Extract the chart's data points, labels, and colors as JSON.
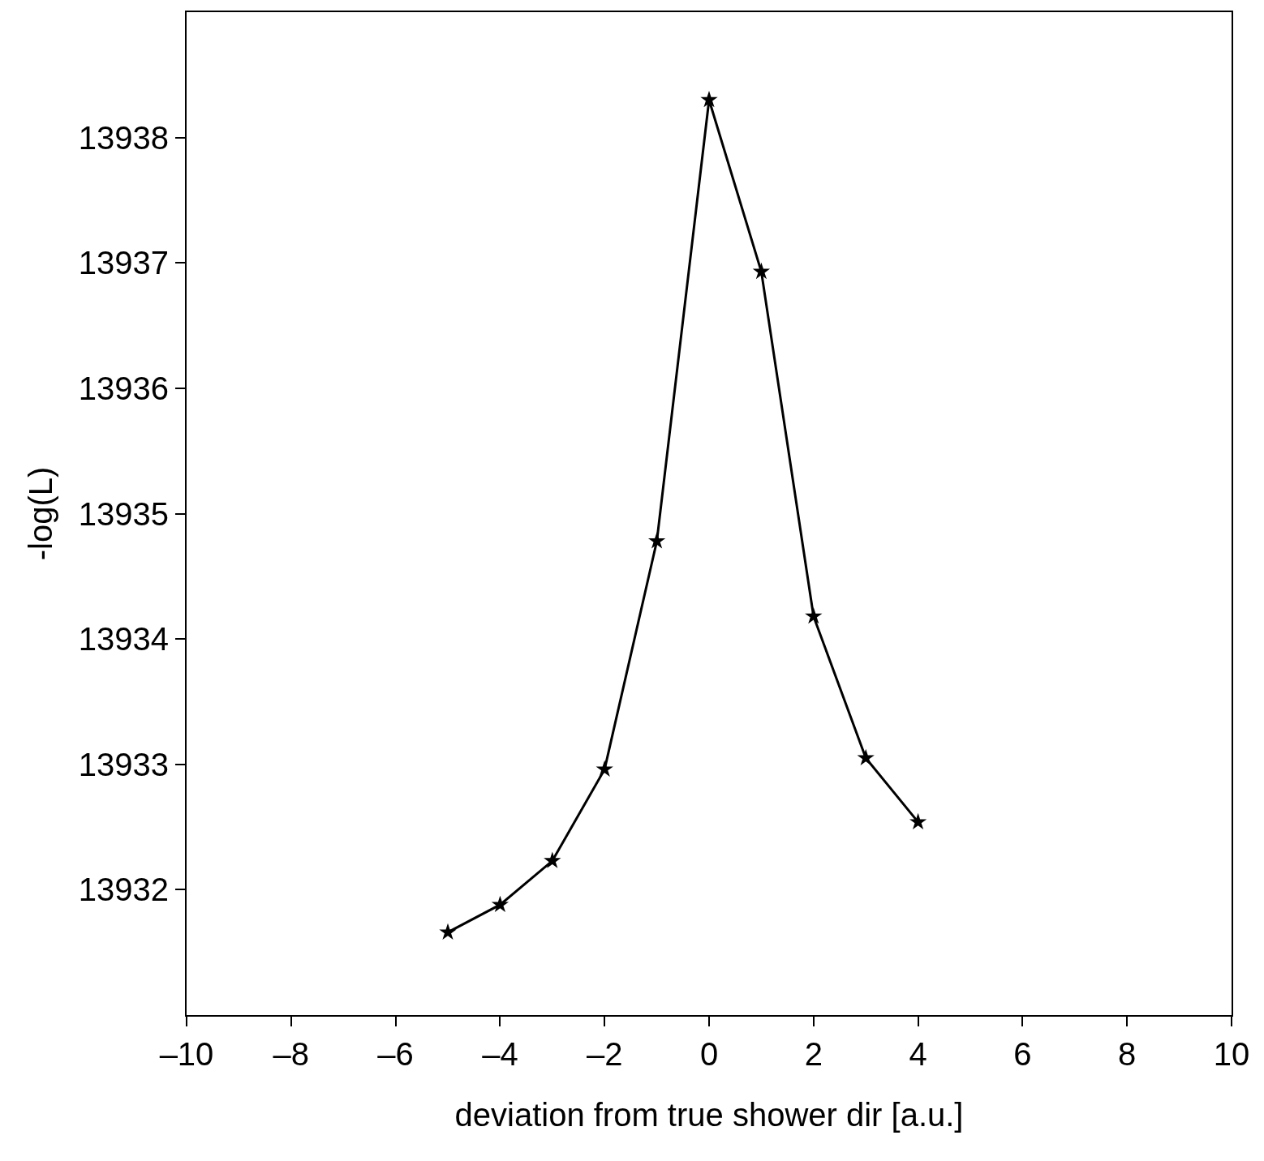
{
  "chart_data": {
    "type": "line",
    "xlabel": "deviation from true shower dir [a.u.]",
    "ylabel": "-log(L)",
    "x": [
      -5,
      -4,
      -3,
      -2,
      -1,
      0,
      1,
      2,
      3,
      4
    ],
    "series": [
      {
        "color": "#000000",
        "values": [
          13931.66,
          13931.88,
          13932.23,
          13932.96,
          13934.78,
          13938.3,
          13936.93,
          13934.18,
          13933.05,
          13932.54
        ]
      }
    ],
    "xlim": [
      -10,
      10
    ],
    "ylim": [
      13931,
      13939
    ],
    "xticks": [
      {
        "value": -10,
        "label": "–10"
      },
      {
        "value": -8,
        "label": "–8"
      },
      {
        "value": -6,
        "label": "–6"
      },
      {
        "value": -4,
        "label": "–4"
      },
      {
        "value": -2,
        "label": "–2"
      },
      0,
      2,
      4,
      6,
      8,
      10
    ],
    "yticks": [
      13932,
      13933,
      13934,
      13935,
      13936,
      13937,
      13938
    ],
    "marker": "star",
    "line_style": "solid"
  }
}
